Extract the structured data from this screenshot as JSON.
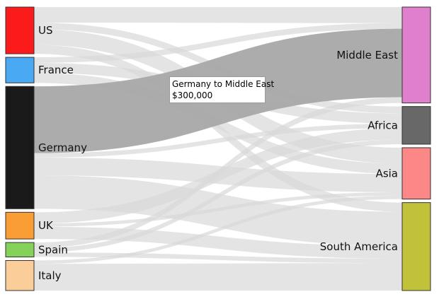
{
  "chart_data": {
    "type": "sankey",
    "sources": [
      {
        "name": "US",
        "color": "#fb1b1b"
      },
      {
        "name": "France",
        "color": "#4aa9f3"
      },
      {
        "name": "Germany",
        "color": "#1a1a1a"
      },
      {
        "name": "UK",
        "color": "#fa9d35"
      },
      {
        "name": "Spain",
        "color": "#84d25a"
      },
      {
        "name": "Italy",
        "color": "#fbcd99"
      }
    ],
    "targets": [
      {
        "name": "Middle East",
        "color": "#e080cc"
      },
      {
        "name": "Africa",
        "color": "#686868"
      },
      {
        "name": "Asia",
        "color": "#fc8787"
      },
      {
        "name": "South America",
        "color": "#c2c13a"
      }
    ],
    "links": [
      {
        "source": "US",
        "target": "Middle East",
        "value": 70000
      },
      {
        "source": "US",
        "target": "Asia",
        "value": 70000
      },
      {
        "source": "US",
        "target": "Africa",
        "value": 30000
      },
      {
        "source": "US",
        "target": "South America",
        "value": 40000
      },
      {
        "source": "France",
        "target": "Middle East",
        "value": 25000
      },
      {
        "source": "France",
        "target": "Africa",
        "value": 45000
      },
      {
        "source": "France",
        "target": "Asia",
        "value": 45000
      },
      {
        "source": "Germany",
        "target": "Middle East",
        "value": 300000
      },
      {
        "source": "Germany",
        "target": "Africa",
        "value": 20000
      },
      {
        "source": "Germany",
        "target": "Asia",
        "value": 80000
      },
      {
        "source": "Germany",
        "target": "South America",
        "value": 150000
      },
      {
        "source": "UK",
        "target": "Africa",
        "value": 50000
      },
      {
        "source": "UK",
        "target": "Asia",
        "value": 15000
      },
      {
        "source": "UK",
        "target": "South America",
        "value": 55000
      },
      {
        "source": "Spain",
        "target": "Middle East",
        "value": 25000
      },
      {
        "source": "Spain",
        "target": "Africa",
        "value": 20000
      },
      {
        "source": "Spain",
        "target": "South America",
        "value": 20000
      },
      {
        "source": "Italy",
        "target": "Asia",
        "value": 15000
      },
      {
        "source": "Italy",
        "target": "South America",
        "value": 120000
      }
    ],
    "highlighted_link": {
      "source": "Germany",
      "target": "Middle East"
    }
  },
  "tooltip": {
    "title": "Germany to Middle East",
    "value": "$300,000"
  }
}
